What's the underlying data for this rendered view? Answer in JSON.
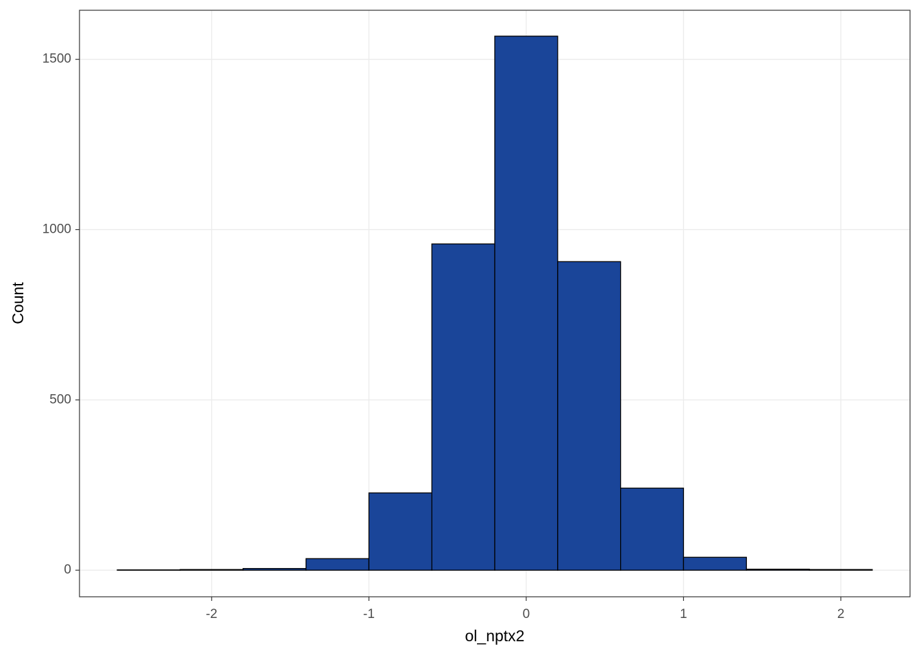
{
  "chart_data": {
    "type": "histogram",
    "x_label": "ol_nptx2",
    "y_label": "Count",
    "bins": [
      -2.6,
      -2.2,
      -1.8,
      -1.4,
      -1.0,
      -0.6,
      -0.2,
      0.2,
      0.6,
      1.0,
      1.4,
      1.8,
      2.2
    ],
    "values": [
      1,
      2,
      5,
      34,
      227,
      958,
      1568,
      906,
      241,
      38,
      3,
      2
    ],
    "color": "#1a4599",
    "edge_color": "#000000",
    "xlim": [
      -2.84,
      2.44
    ],
    "xticks": [
      -2,
      -1,
      0,
      1,
      2
    ],
    "ylim": [
      -78,
      1644
    ],
    "yticks": [
      0,
      500,
      1000,
      1500
    ],
    "grid": true
  }
}
